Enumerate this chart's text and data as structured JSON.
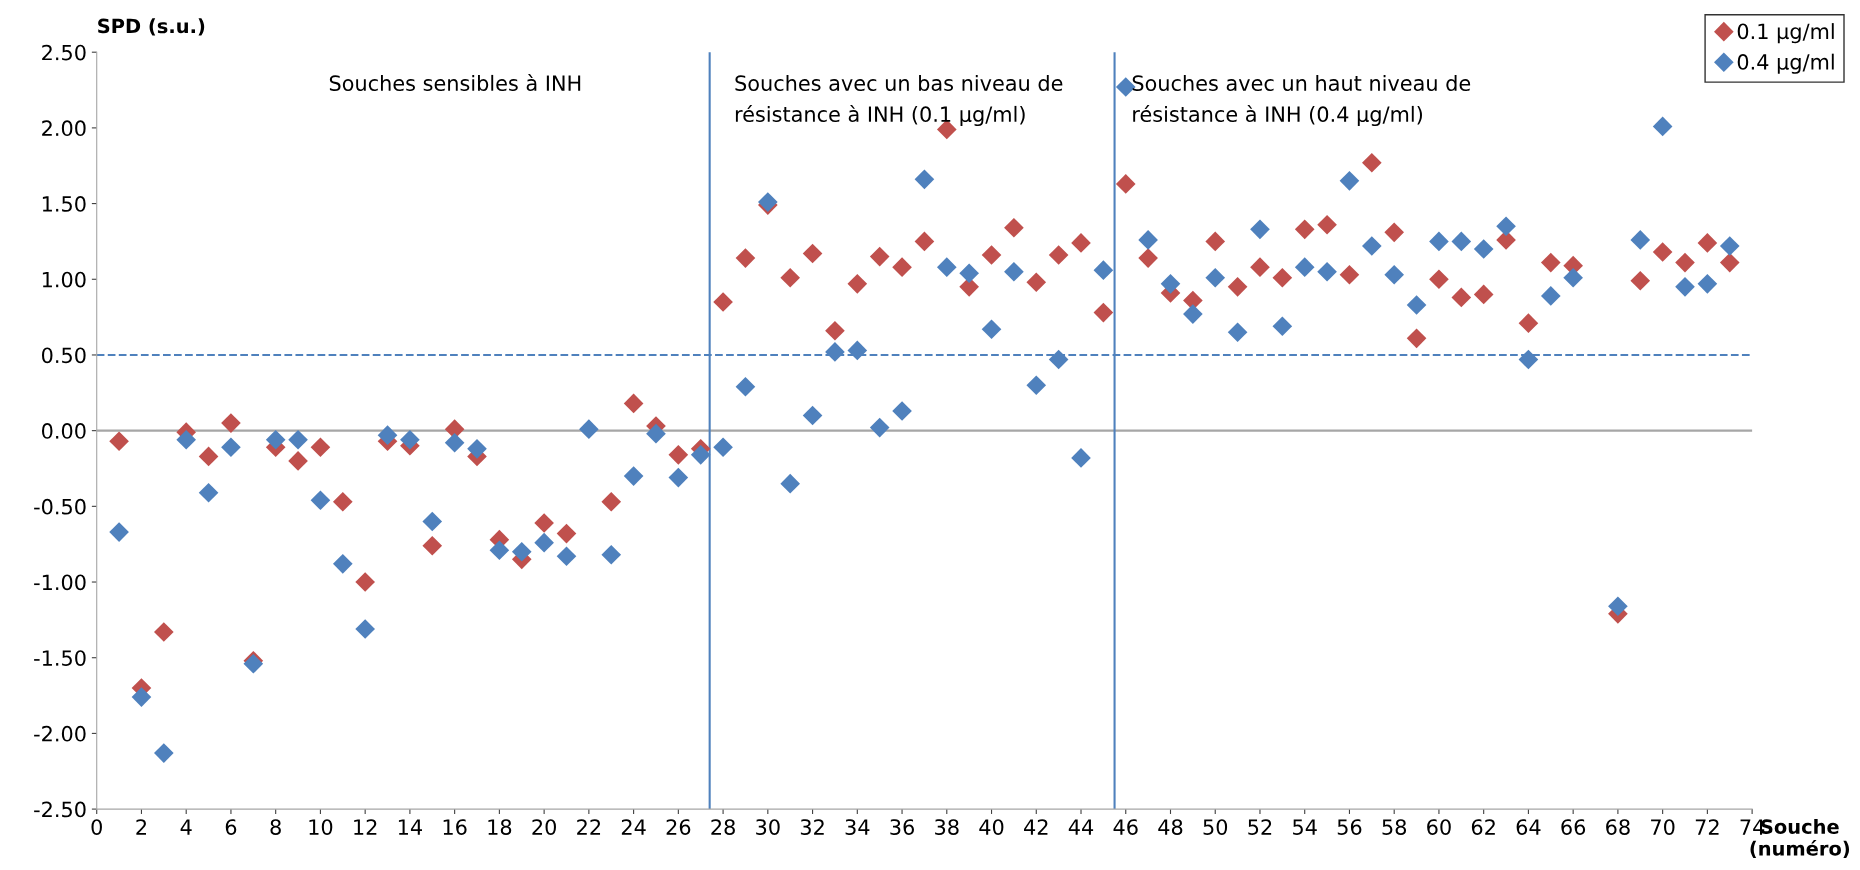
{
  "chart_data": {
    "type": "scatter",
    "xlabel": "Souche\n(numéro)",
    "ylabel": "SPD (s.u.)",
    "x": [
      1,
      2,
      3,
      4,
      5,
      6,
      7,
      8,
      9,
      10,
      11,
      12,
      13,
      14,
      15,
      16,
      17,
      18,
      19,
      20,
      21,
      22,
      23,
      24,
      25,
      26,
      27,
      28,
      29,
      30,
      31,
      32,
      33,
      34,
      35,
      36,
      37,
      38,
      39,
      40,
      41,
      42,
      43,
      44,
      45,
      46,
      47,
      48,
      49,
      50,
      51,
      52,
      53,
      54,
      55,
      56,
      57,
      58,
      59,
      60,
      61,
      62,
      63,
      64,
      65,
      66,
      67,
      68,
      69,
      70,
      71,
      72,
      73
    ],
    "series": [
      {
        "name": "0.1 µg/ml",
        "color": "#c0504d",
        "values": [
          -0.07,
          -1.7,
          -1.33,
          -0.01,
          -0.17,
          0.05,
          -1.52,
          -0.11,
          -0.2,
          -0.11,
          -0.47,
          -1.0,
          -0.07,
          -0.1,
          -0.76,
          0.01,
          -0.17,
          -0.72,
          -0.85,
          -0.61,
          -0.68,
          null,
          -0.47,
          0.18,
          0.03,
          -0.16,
          -0.12,
          0.85,
          1.14,
          1.49,
          1.01,
          1.17,
          0.66,
          0.97,
          1.15,
          1.08,
          1.25,
          1.99,
          0.95,
          1.16,
          1.34,
          0.98,
          1.16,
          1.24,
          0.78,
          1.63,
          1.14,
          0.91,
          0.86,
          1.25,
          0.95,
          1.08,
          1.01,
          1.33,
          1.36,
          1.03,
          1.77,
          1.31,
          0.61,
          1.0,
          0.88,
          0.9,
          1.26,
          0.71,
          1.11,
          1.09,
          null,
          -1.21,
          0.99,
          1.18,
          1.11,
          1.24,
          1.11
        ]
      },
      {
        "name": "0.4 µg/ml",
        "color": "#4f81bd",
        "values": [
          -0.67,
          -1.76,
          -2.13,
          -0.06,
          -0.41,
          -0.11,
          -1.54,
          -0.06,
          -0.06,
          -0.46,
          -0.88,
          -1.31,
          -0.03,
          -0.06,
          -0.6,
          -0.08,
          -0.12,
          -0.79,
          -0.8,
          -0.74,
          -0.83,
          0.01,
          -0.82,
          -0.3,
          -0.02,
          -0.31,
          -0.16,
          -0.11,
          0.29,
          1.51,
          -0.35,
          0.1,
          0.52,
          0.53,
          0.02,
          0.13,
          1.66,
          1.08,
          1.04,
          0.67,
          1.05,
          0.3,
          0.47,
          -0.18,
          1.06,
          2.27,
          1.26,
          0.97,
          0.77,
          1.01,
          0.65,
          1.33,
          0.69,
          1.08,
          1.05,
          1.65,
          1.22,
          1.03,
          0.83,
          1.25,
          1.25,
          1.2,
          1.35,
          0.47,
          0.89,
          1.01,
          null,
          -1.16,
          1.26,
          2.01,
          0.95,
          0.97,
          1.22
        ]
      }
    ],
    "xlim": [
      0,
      74
    ],
    "xticks": [
      0,
      2,
      4,
      6,
      8,
      10,
      12,
      14,
      16,
      18,
      20,
      22,
      24,
      26,
      28,
      30,
      32,
      34,
      36,
      38,
      40,
      42,
      44,
      46,
      48,
      50,
      52,
      54,
      56,
      58,
      60,
      62,
      64,
      66,
      68,
      70,
      72,
      74
    ],
    "ylim": [
      -2.5,
      2.5
    ],
    "yticks": [
      {
        "value": -2.5,
        "label": "-2.50"
      },
      {
        "value": -2.0,
        "label": "-2.00"
      },
      {
        "value": -1.5,
        "label": "-1.50"
      },
      {
        "value": -1.0,
        "label": "-1.00"
      },
      {
        "value": -0.5,
        "label": "-0.50"
      },
      {
        "value": 0,
        "label": "0.00"
      },
      {
        "value": 0.5,
        "label": "0.50"
      },
      {
        "value": 1.0,
        "label": "1.00"
      },
      {
        "value": 1.5,
        "label": "1.50"
      },
      {
        "value": 2.0,
        "label": "2.00"
      },
      {
        "value": 2.5,
        "label": "2.50"
      }
    ],
    "ref_lines": [
      {
        "axis": "y",
        "value": 0,
        "color": "#a6a6a6",
        "line_style": "solid"
      },
      {
        "axis": "y",
        "value": 0.5,
        "color": "#4f81bd",
        "line_style": "dashed"
      },
      {
        "axis": "x",
        "value": 27.4,
        "color": "#4f81bd",
        "line_style": "solid"
      },
      {
        "axis": "x",
        "value": 45.5,
        "color": "#4f81bd",
        "line_style": "solid"
      }
    ],
    "annotations": [
      "Souches sensibles à INH",
      "Souches avec un bas niveau de\nrésistance à INH (0.1 µg/ml)",
      "Souches avec un haut niveau de\nrésistance à INH (0.4 µg/ml)"
    ],
    "marker": "diamond",
    "grid": false,
    "legend": "top right"
  }
}
